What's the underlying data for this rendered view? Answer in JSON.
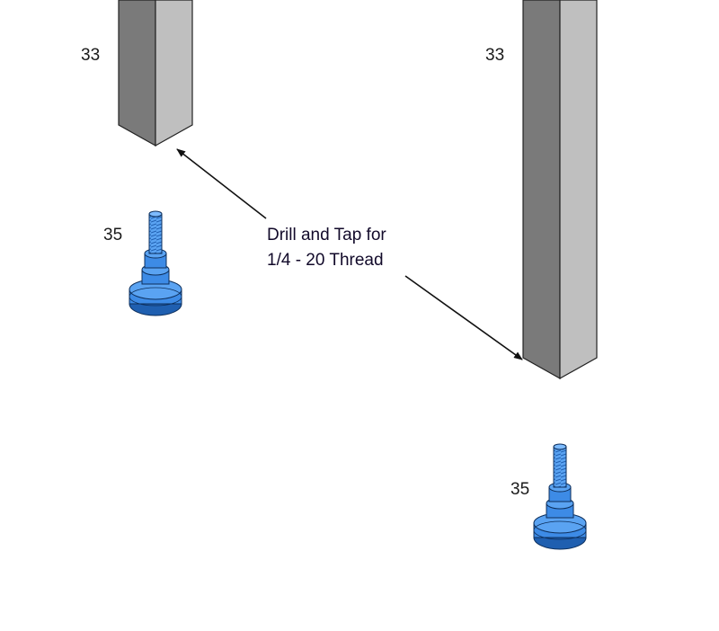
{
  "callouts": {
    "leg_left": "33",
    "leg_right": "33",
    "foot_left": "35",
    "foot_right": "35"
  },
  "note": {
    "line1": "Drill and Tap for",
    "line2": "1/4 - 20 Thread"
  },
  "colors": {
    "leg_dark": "#7a7a7a",
    "leg_light": "#bfbfbf",
    "foot_blue": "#3d8be6",
    "foot_blue_dark": "#1f5fb0",
    "outline": "#222222"
  }
}
